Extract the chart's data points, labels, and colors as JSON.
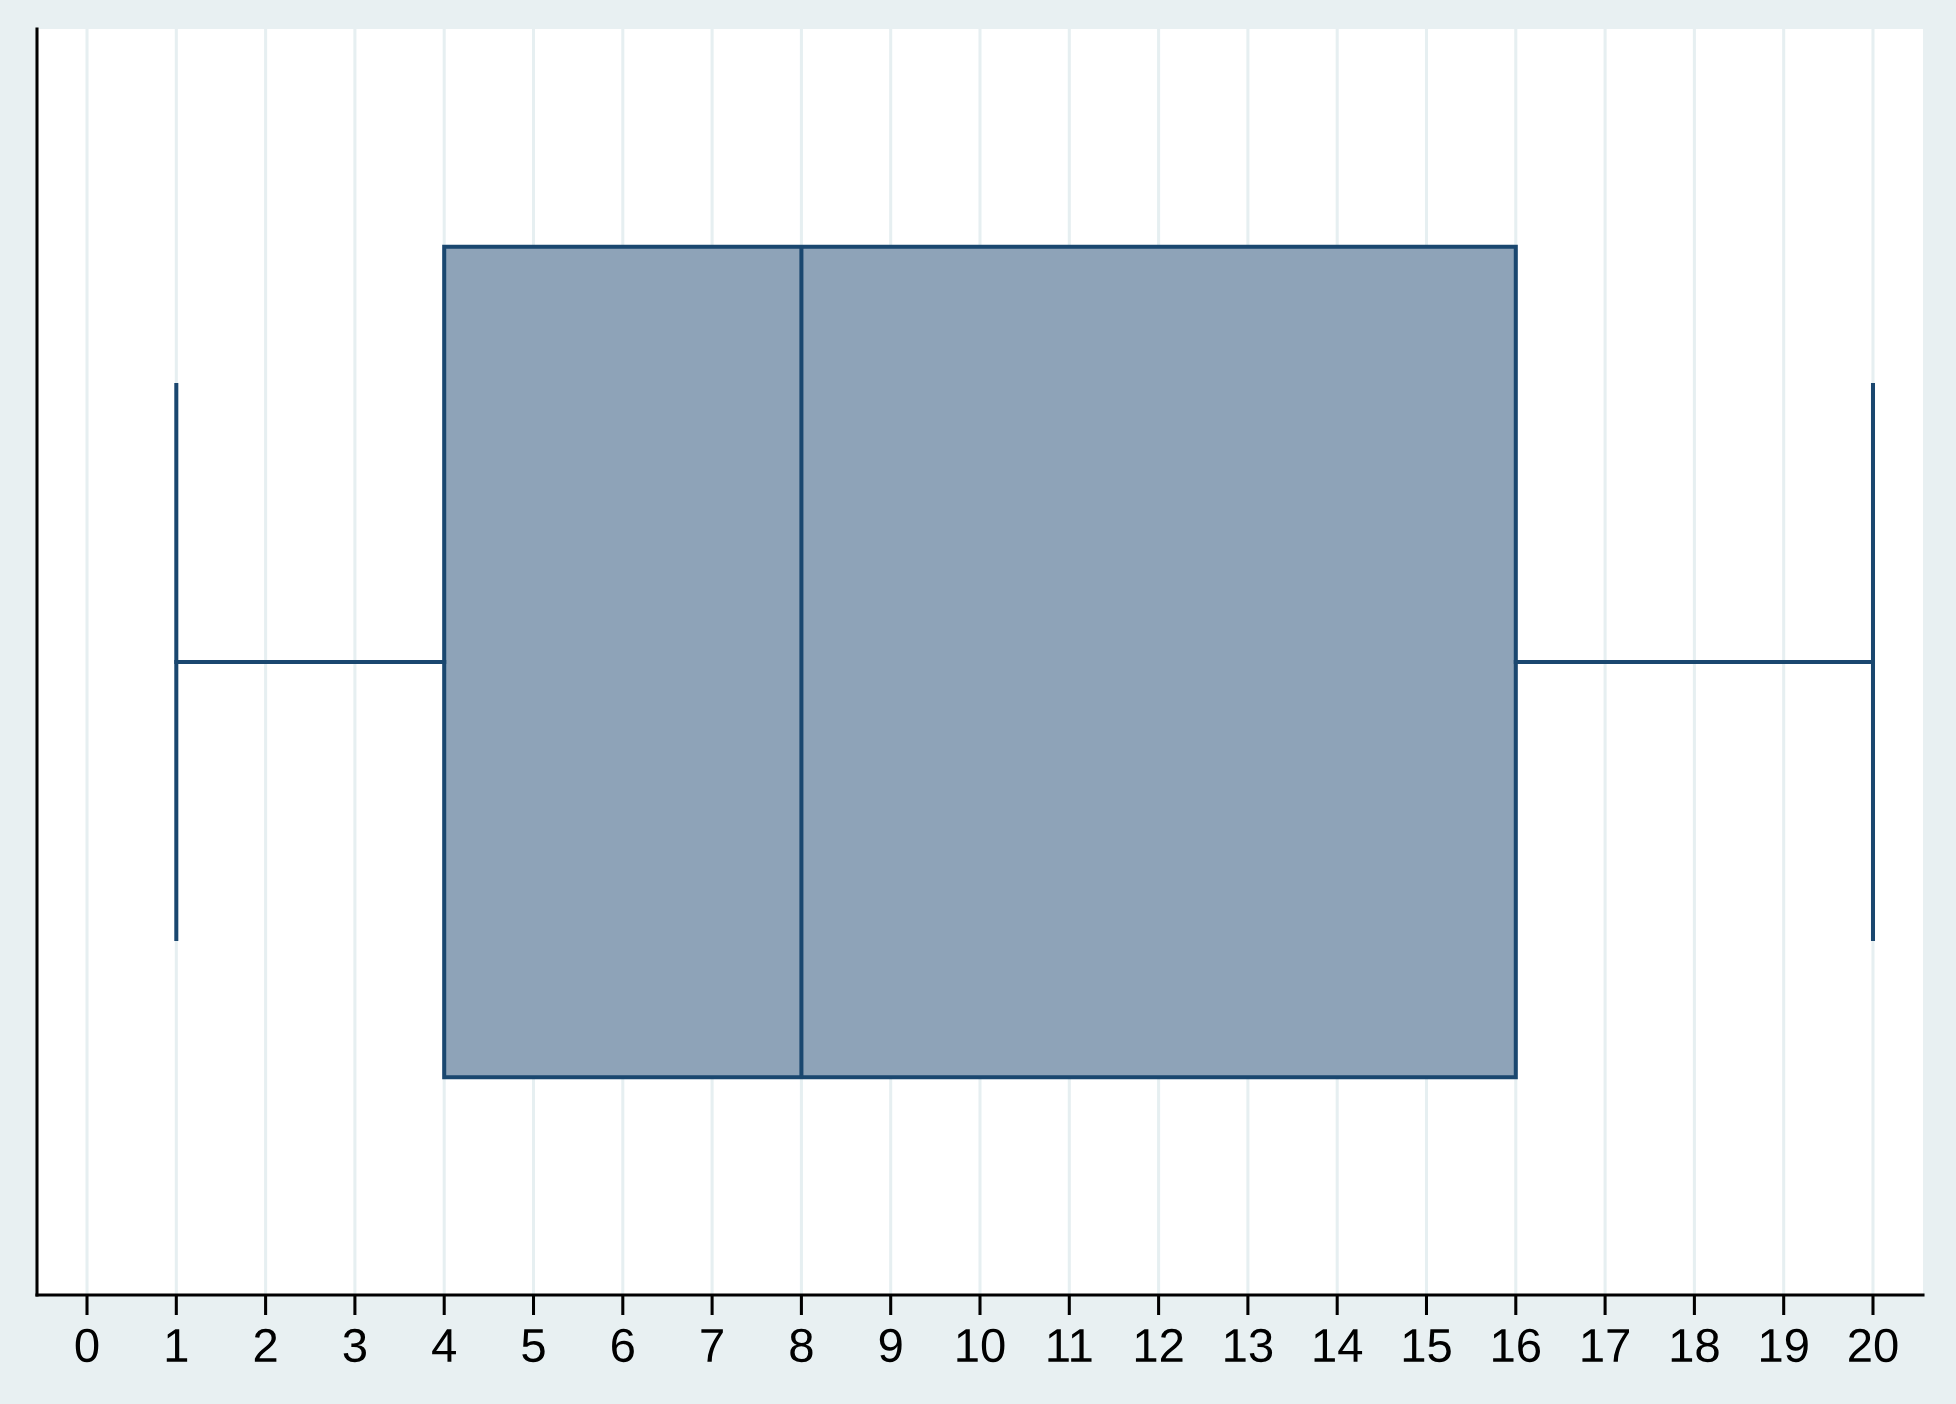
{
  "chart_data": {
    "type": "box",
    "orientation": "horizontal",
    "categories": [
      null
    ],
    "series": [
      {
        "color": "#8ea3b8",
        "boxes": [
          {
            "low": 1,
            "q1": 4,
            "median": 8,
            "q3": 16,
            "high": 20
          }
        ]
      }
    ],
    "xlim": [
      -0.56,
      20.56
    ],
    "xticks": [
      0,
      1,
      2,
      3,
      4,
      5,
      6,
      7,
      8,
      9,
      10,
      11,
      12,
      13,
      14,
      15,
      16,
      17,
      18,
      19,
      20
    ],
    "grid": "x",
    "tick_labels": "x"
  }
}
